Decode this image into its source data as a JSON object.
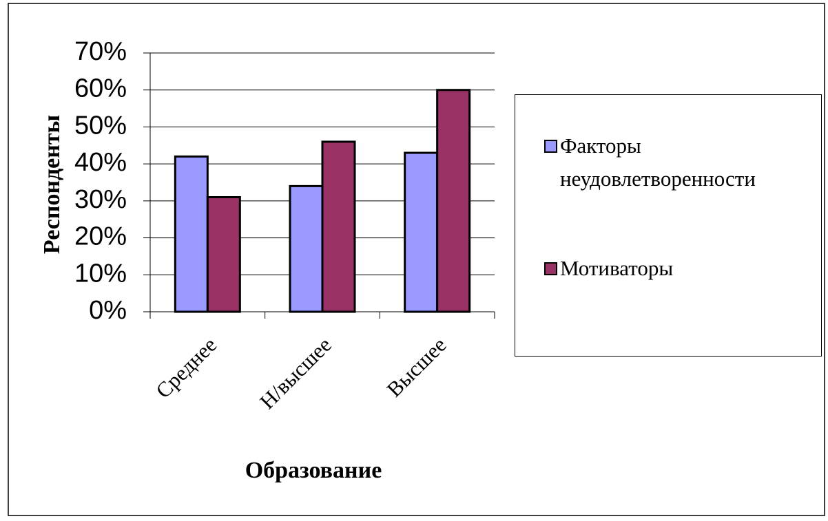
{
  "chart_data": {
    "type": "bar",
    "x_label": "Образование",
    "y_label": "Респонденты",
    "categories": [
      "Среднее",
      "Н/высшее",
      "Высшее"
    ],
    "series": [
      {
        "name": "Факторы неудовлетворенности",
        "color": "#9999ff",
        "values": [
          42,
          34,
          43
        ]
      },
      {
        "name": "Мотиваторы",
        "color": "#993366",
        "values": [
          31,
          46,
          60
        ]
      }
    ],
    "ylim": [
      0,
      70
    ],
    "yticks": [
      {
        "value": 0,
        "label": "0%"
      },
      {
        "value": 10,
        "label": "10%"
      },
      {
        "value": 20,
        "label": "20%"
      },
      {
        "value": 30,
        "label": "30%"
      },
      {
        "value": 40,
        "label": "40%"
      },
      {
        "value": 50,
        "label": "50%"
      },
      {
        "value": 60,
        "label": "60%"
      },
      {
        "value": 70,
        "label": "70%"
      }
    ],
    "grid": true,
    "legend": "right"
  }
}
